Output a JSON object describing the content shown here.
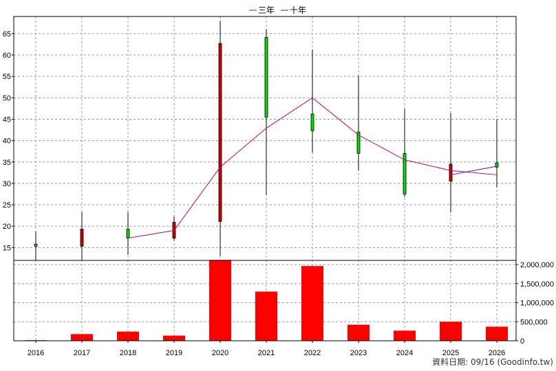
{
  "chart_data": {
    "type": "candlestick",
    "legend": [
      {
        "name": "三年",
        "color": "#cc0066"
      },
      {
        "name": "十年",
        "color": "#6600cc"
      }
    ],
    "legend_position": "top-center",
    "grid": true,
    "price_axis": {
      "range": [
        12,
        69
      ],
      "ticks": [
        15,
        20,
        25,
        30,
        35,
        40,
        45,
        50,
        55,
        60,
        65
      ],
      "side": "left"
    },
    "volume_axis": {
      "range": [
        0,
        2000000
      ],
      "ticks": [
        0,
        500000,
        1000000,
        1500000,
        2000000
      ],
      "tick_labels": [
        "0",
        "500,000",
        "1,000,000",
        "1,500,000",
        "2,000,000"
      ],
      "side": "right"
    },
    "categories": [
      "2016",
      "2017",
      "2018",
      "2019",
      "2020",
      "2021",
      "2022",
      "2023",
      "2024",
      "2025",
      "2026"
    ],
    "candles": [
      {
        "year": "2016",
        "open": 15.8,
        "close": 15.3,
        "high": 18.8,
        "low": 12.0,
        "color": "green"
      },
      {
        "year": "2017",
        "open": 19.3,
        "close": 15.3,
        "high": 23.3,
        "low": 12.0,
        "color": "red"
      },
      {
        "year": "2018",
        "open": 17.2,
        "close": 19.3,
        "high": 23.3,
        "low": 13.3,
        "color": "green"
      },
      {
        "year": "2019",
        "open": 20.9,
        "close": 17.2,
        "high": 22.3,
        "low": 16.6,
        "color": "red"
      },
      {
        "year": "2020",
        "open": 62.7,
        "close": 21.1,
        "high": 68.0,
        "low": 13.1,
        "color": "red"
      },
      {
        "year": "2021",
        "open": 45.5,
        "close": 64.1,
        "high": 66.0,
        "low": 27.3,
        "color": "green"
      },
      {
        "year": "2022",
        "open": 42.3,
        "close": 46.2,
        "high": 61.3,
        "low": 37.2,
        "color": "green"
      },
      {
        "year": "2023",
        "open": 37.0,
        "close": 42.0,
        "high": 55.2,
        "low": 33.0,
        "color": "green"
      },
      {
        "year": "2024",
        "open": 27.5,
        "close": 37.0,
        "high": 47.4,
        "low": 26.8,
        "color": "green"
      },
      {
        "year": "2025",
        "open": 34.5,
        "close": 30.5,
        "high": 46.4,
        "low": 23.2,
        "color": "red"
      },
      {
        "year": "2026",
        "open": 33.8,
        "close": 34.8,
        "high": 45.0,
        "low": 29.0,
        "color": "green"
      }
    ],
    "series": [
      {
        "name": "三年",
        "x": [
          "2018",
          "2019",
          "2020",
          "2021",
          "2022",
          "2023",
          "2024",
          "2025",
          "2026"
        ],
        "values": [
          17.2,
          19.0,
          33.8,
          42.9,
          50.0,
          41.3,
          35.5,
          33.0,
          32.0
        ]
      },
      {
        "name": "十年",
        "x": [
          "2025",
          "2026"
        ],
        "values": [
          32.0,
          34.0
        ]
      }
    ],
    "volume": [
      15000,
      175000,
      240000,
      135000,
      2120000,
      1290000,
      1960000,
      420000,
      265000,
      500000,
      370000
    ]
  },
  "footer": {
    "text": "資料日期: 09/16  (Goodinfo.tw)"
  }
}
